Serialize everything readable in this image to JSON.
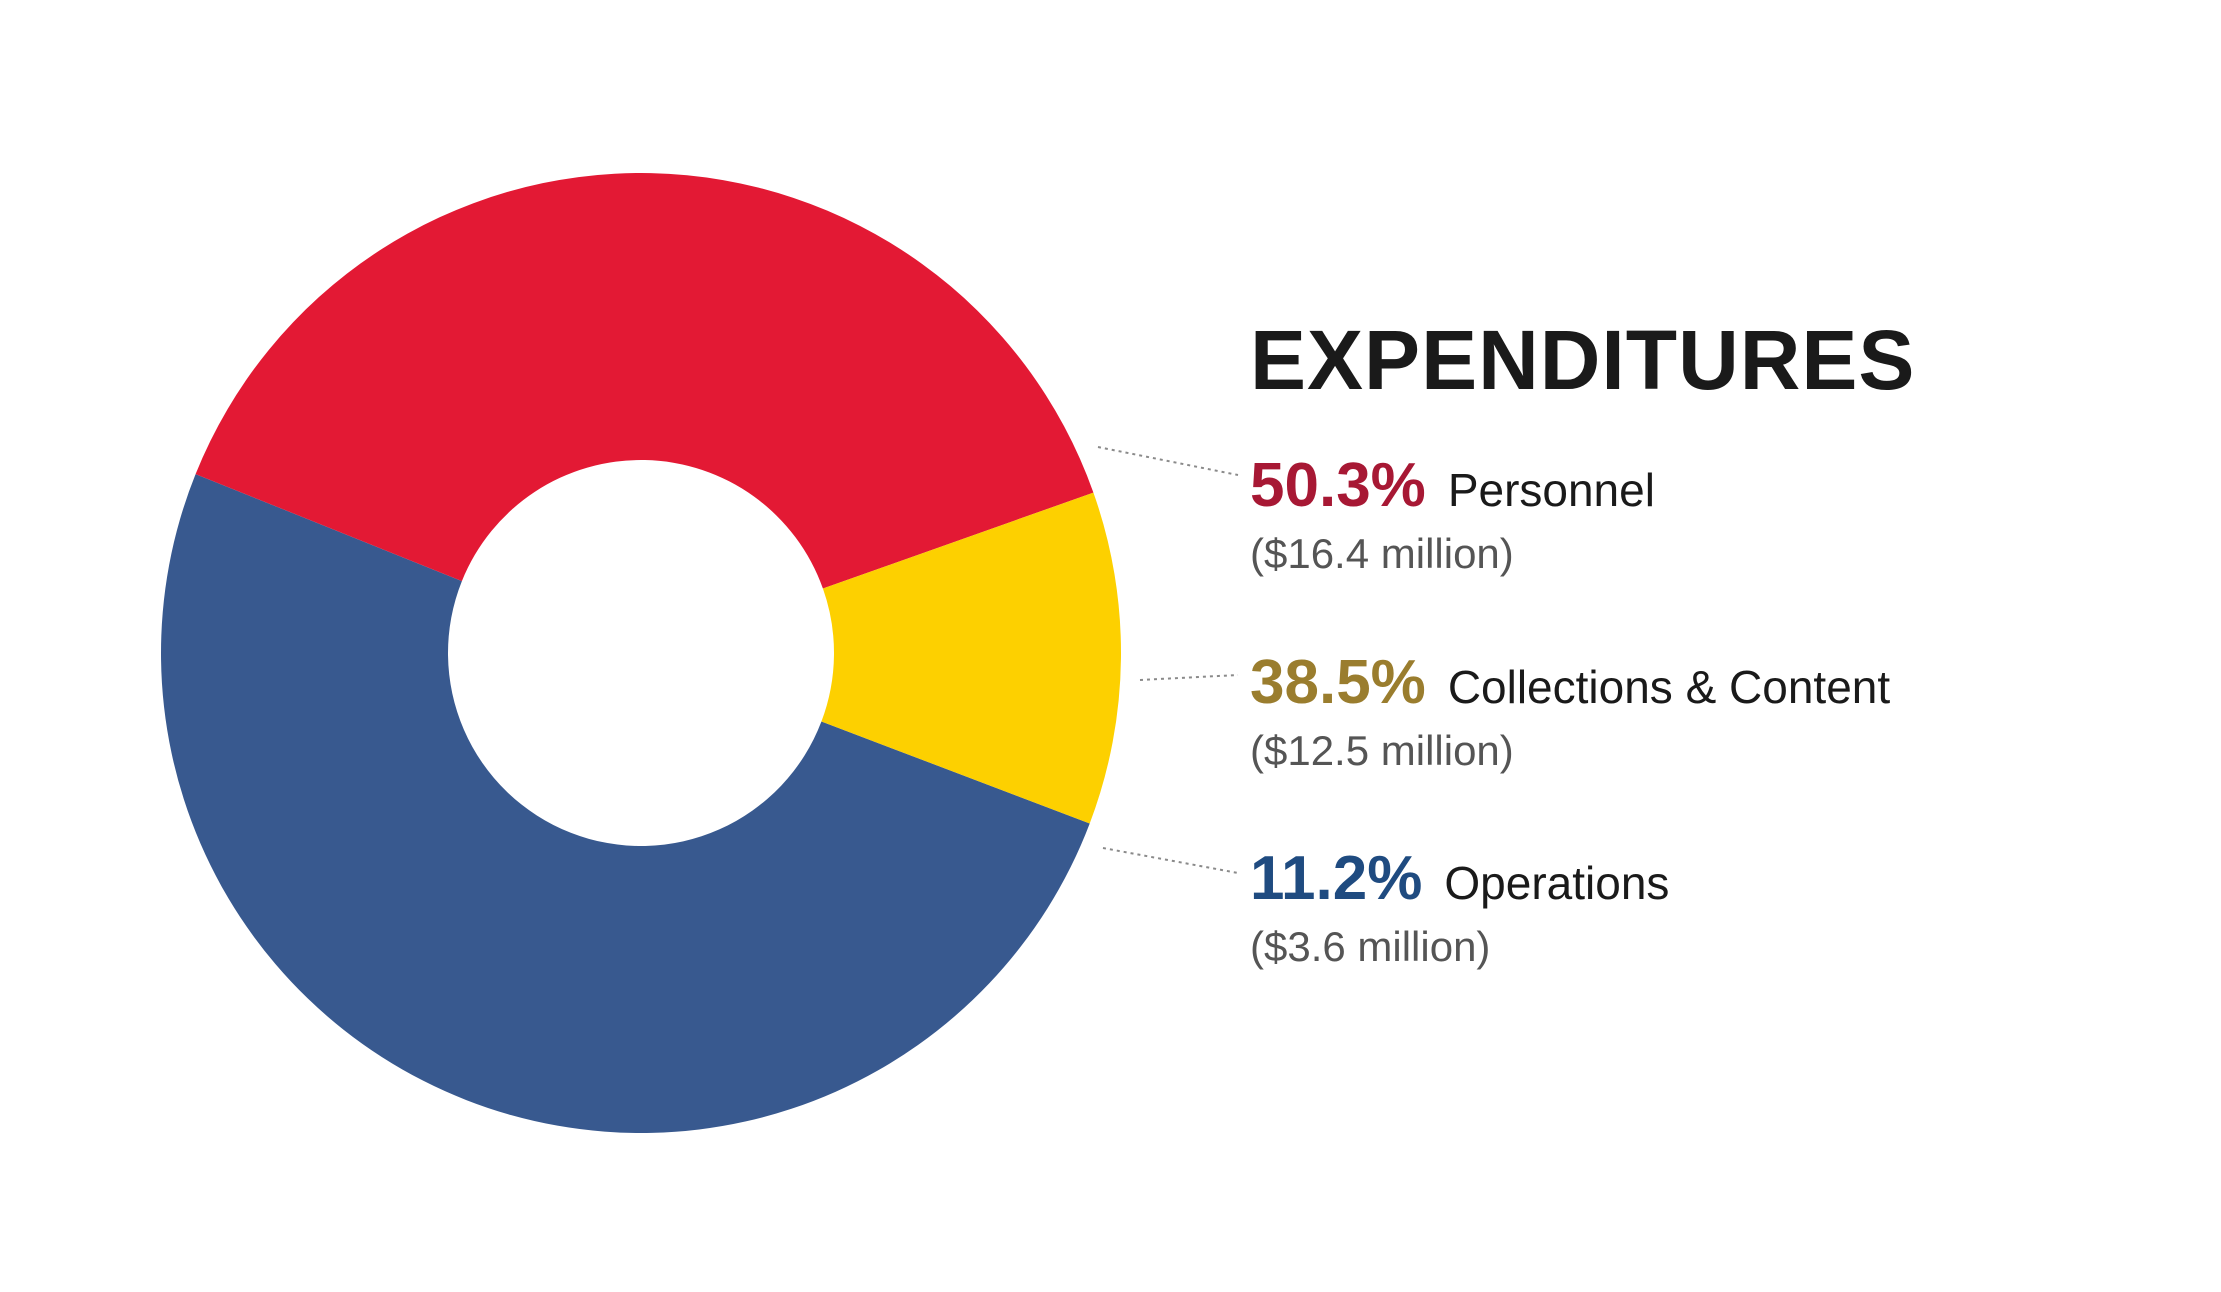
{
  "chart_data": {
    "type": "pie",
    "title": "EXPENDITURES",
    "slices": [
      {
        "name": "Personnel",
        "percent": 50.3,
        "percent_label": "50.3%",
        "amount_label": "($16.4 million)",
        "color": "#38598f",
        "label_color": "#a71834"
      },
      {
        "name": "Collections & Content",
        "percent": 38.5,
        "percent_label": "38.5%",
        "amount_label": "($12.5 million)",
        "color": "#e31934",
        "label_color": "#9a7d2e"
      },
      {
        "name": "Operations",
        "percent": 11.2,
        "percent_label": "11.2%",
        "amount_label": "($3.6 million)",
        "color": "#fdd000",
        "label_color": "#1f4b80"
      }
    ]
  }
}
